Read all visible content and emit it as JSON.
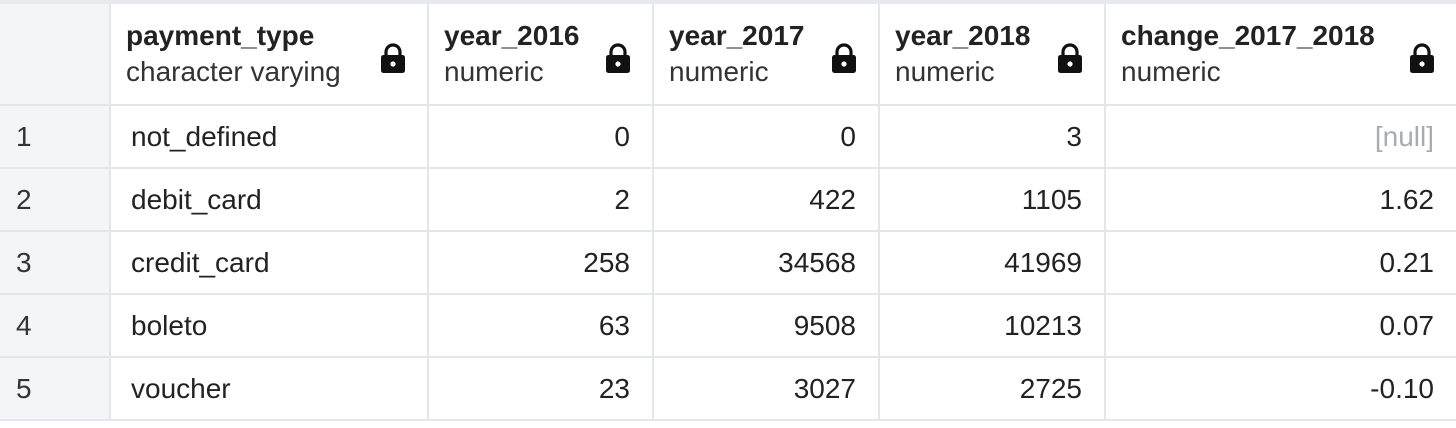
{
  "columns": [
    {
      "name": "payment_type",
      "type": "character varying"
    },
    {
      "name": "year_2016",
      "type": "numeric"
    },
    {
      "name": "year_2017",
      "type": "numeric"
    },
    {
      "name": "year_2018",
      "type": "numeric"
    },
    {
      "name": "change_2017_2018",
      "type": "numeric"
    }
  ],
  "icons": {
    "column_lock": "lock-icon"
  },
  "colors": {
    "null_text": "#a8adb3",
    "row_index_bg": "#f3f5f7",
    "grid_line": "#e3e6ea"
  },
  "rows": [
    {
      "index": "1",
      "payment_type": "not_defined",
      "year_2016": "0",
      "year_2017": "0",
      "year_2018": "3",
      "change_2017_2018": "[null]"
    },
    {
      "index": "2",
      "payment_type": "debit_card",
      "year_2016": "2",
      "year_2017": "422",
      "year_2018": "1105",
      "change_2017_2018": "1.62"
    },
    {
      "index": "3",
      "payment_type": "credit_card",
      "year_2016": "258",
      "year_2017": "34568",
      "year_2018": "41969",
      "change_2017_2018": "0.21"
    },
    {
      "index": "4",
      "payment_type": "boleto",
      "year_2016": "63",
      "year_2017": "9508",
      "year_2018": "10213",
      "change_2017_2018": "0.07"
    },
    {
      "index": "5",
      "payment_type": "voucher",
      "year_2016": "23",
      "year_2017": "3027",
      "year_2018": "2725",
      "change_2017_2018": "-0.10"
    }
  ]
}
